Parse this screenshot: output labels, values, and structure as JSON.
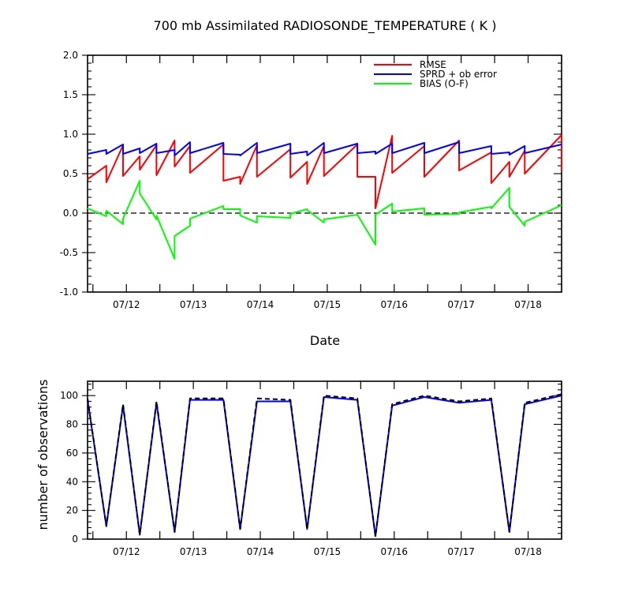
{
  "chart_data": [
    {
      "type": "line",
      "title": "700 mb Assimilated RADIOSONDE_TEMPERATURE ( K )",
      "xlabel": "Date",
      "ylabel": "",
      "x_tick_labels": [
        "07/12",
        "07/13",
        "07/14",
        "07/15",
        "07/16",
        "07/17",
        "07/18"
      ],
      "x_tick_days": [
        12,
        13,
        14,
        15,
        16,
        17,
        18
      ],
      "xlim_days": [
        11.42,
        18.5
      ],
      "ylim": [
        -1.0,
        2.0
      ],
      "y_ticks": [
        -1.0,
        -0.5,
        0.0,
        0.5,
        1.0,
        1.5,
        2.0
      ],
      "y_tick_labels": [
        "-1.0",
        "-0.5",
        "0.0",
        "0.5",
        "1.0",
        "1.5",
        "2.0"
      ],
      "zero_line": "dashed",
      "grid": false,
      "legend_position": "top-right",
      "series": [
        {
          "name": "RMSE",
          "color": "#ff0000",
          "points": [
            [
              11.42,
              0.43
            ],
            [
              11.7,
              0.6
            ],
            [
              11.7,
              0.39
            ],
            [
              11.95,
              0.86
            ],
            [
              11.95,
              0.47
            ],
            [
              12.2,
              0.72
            ],
            [
              12.2,
              0.55
            ],
            [
              12.45,
              0.86
            ],
            [
              12.45,
              0.48
            ],
            [
              12.72,
              0.92
            ],
            [
              12.72,
              0.59
            ],
            [
              12.95,
              0.85
            ],
            [
              12.95,
              0.51
            ],
            [
              13.45,
              0.87
            ],
            [
              13.45,
              0.41
            ],
            [
              13.7,
              0.46
            ],
            [
              13.7,
              0.37
            ],
            [
              13.95,
              0.86
            ],
            [
              13.95,
              0.46
            ],
            [
              14.45,
              0.81
            ],
            [
              14.45,
              0.45
            ],
            [
              14.7,
              0.65
            ],
            [
              14.7,
              0.37
            ],
            [
              14.95,
              0.85
            ],
            [
              14.95,
              0.47
            ],
            [
              15.45,
              0.87
            ],
            [
              15.45,
              0.46
            ],
            [
              15.72,
              0.46
            ],
            [
              15.72,
              0.06
            ],
            [
              15.97,
              0.98
            ],
            [
              15.97,
              0.51
            ],
            [
              16.45,
              0.85
            ],
            [
              16.45,
              0.46
            ],
            [
              16.97,
              0.92
            ],
            [
              16.97,
              0.54
            ],
            [
              17.45,
              0.77
            ],
            [
              17.45,
              0.38
            ],
            [
              17.72,
              0.65
            ],
            [
              17.72,
              0.46
            ],
            [
              17.95,
              0.79
            ],
            [
              17.95,
              0.5
            ],
            [
              18.5,
              0.99
            ],
            [
              18.5,
              0.52
            ]
          ]
        },
        {
          "name": "SPRD + ob error",
          "color": "#0000ff",
          "points": [
            [
              11.42,
              0.75
            ],
            [
              11.7,
              0.8
            ],
            [
              11.7,
              0.75
            ],
            [
              11.95,
              0.87
            ],
            [
              11.95,
              0.75
            ],
            [
              12.2,
              0.82
            ],
            [
              12.2,
              0.76
            ],
            [
              12.45,
              0.88
            ],
            [
              12.45,
              0.76
            ],
            [
              12.72,
              0.8
            ],
            [
              12.72,
              0.73
            ],
            [
              12.95,
              0.9
            ],
            [
              12.95,
              0.76
            ],
            [
              13.45,
              0.89
            ],
            [
              13.45,
              0.75
            ],
            [
              13.7,
              0.74
            ],
            [
              13.7,
              0.73
            ],
            [
              13.95,
              0.89
            ],
            [
              13.95,
              0.76
            ],
            [
              14.45,
              0.88
            ],
            [
              14.45,
              0.75
            ],
            [
              14.7,
              0.78
            ],
            [
              14.7,
              0.73
            ],
            [
              14.95,
              0.89
            ],
            [
              14.95,
              0.76
            ],
            [
              15.45,
              0.88
            ],
            [
              15.45,
              0.76
            ],
            [
              15.72,
              0.78
            ],
            [
              15.72,
              0.75
            ],
            [
              15.97,
              0.88
            ],
            [
              15.97,
              0.76
            ],
            [
              16.45,
              0.89
            ],
            [
              16.45,
              0.76
            ],
            [
              16.97,
              0.9
            ],
            [
              16.97,
              0.76
            ],
            [
              17.45,
              0.85
            ],
            [
              17.45,
              0.75
            ],
            [
              17.72,
              0.77
            ],
            [
              17.72,
              0.74
            ],
            [
              17.95,
              0.85
            ],
            [
              17.95,
              0.76
            ],
            [
              18.5,
              0.87
            ]
          ]
        },
        {
          "name": "BIAS (O-F)",
          "color": "#00ff00",
          "points": [
            [
              11.42,
              0.06
            ],
            [
              11.7,
              -0.04
            ],
            [
              11.7,
              0.03
            ],
            [
              11.95,
              -0.14
            ],
            [
              11.95,
              -0.07
            ],
            [
              12.2,
              0.41
            ],
            [
              12.2,
              0.25
            ],
            [
              12.45,
              -0.08
            ],
            [
              12.45,
              -0.03
            ],
            [
              12.72,
              -0.58
            ],
            [
              12.72,
              -0.29
            ],
            [
              12.95,
              -0.16
            ],
            [
              12.95,
              -0.07
            ],
            [
              13.45,
              0.09
            ],
            [
              13.45,
              0.05
            ],
            [
              13.7,
              0.05
            ],
            [
              13.7,
              -0.03
            ],
            [
              13.95,
              -0.12
            ],
            [
              13.95,
              -0.04
            ],
            [
              14.45,
              -0.06
            ],
            [
              14.45,
              -0.01
            ],
            [
              14.7,
              0.05
            ],
            [
              14.7,
              0.04
            ],
            [
              14.95,
              -0.12
            ],
            [
              14.95,
              -0.08
            ],
            [
              15.45,
              -0.02
            ],
            [
              15.45,
              -0.02
            ],
            [
              15.72,
              -0.4
            ],
            [
              15.72,
              -0.02
            ],
            [
              15.97,
              0.12
            ],
            [
              15.97,
              0.02
            ],
            [
              16.45,
              0.06
            ],
            [
              16.45,
              -0.02
            ],
            [
              16.97,
              -0.01
            ],
            [
              16.97,
              0.01
            ],
            [
              17.45,
              0.08
            ],
            [
              17.45,
              0.06
            ],
            [
              17.72,
              0.32
            ],
            [
              17.72,
              0.08
            ],
            [
              17.95,
              -0.16
            ],
            [
              17.95,
              -0.11
            ],
            [
              18.5,
              0.1
            ]
          ]
        }
      ]
    },
    {
      "type": "line",
      "title": "",
      "xlabel": "",
      "ylabel": "number of observations",
      "x_tick_labels": [
        "07/12",
        "07/13",
        "07/14",
        "07/15",
        "07/16",
        "07/17",
        "07/18"
      ],
      "x_tick_days": [
        12,
        13,
        14,
        15,
        16,
        17,
        18
      ],
      "xlim_days": [
        11.42,
        18.5
      ],
      "ylim": [
        0,
        110
      ],
      "y_ticks": [
        0,
        20,
        40,
        60,
        80,
        100
      ],
      "y_tick_labels": [
        "0",
        "20",
        "40",
        "60",
        "80",
        "100"
      ],
      "grid": false,
      "series": [
        {
          "style": "solid",
          "color": "#0000ff",
          "points": [
            [
              11.42,
              97
            ],
            [
              11.7,
              9
            ],
            [
              11.95,
              93
            ],
            [
              12.2,
              3
            ],
            [
              12.45,
              95
            ],
            [
              12.72,
              5
            ],
            [
              12.95,
              97
            ],
            [
              13.45,
              97
            ],
            [
              13.7,
              7
            ],
            [
              13.95,
              96
            ],
            [
              14.45,
              96
            ],
            [
              14.7,
              7
            ],
            [
              14.95,
              99
            ],
            [
              15.45,
              97
            ],
            [
              15.72,
              2
            ],
            [
              15.97,
              93
            ],
            [
              16.45,
              99
            ],
            [
              16.97,
              95
            ],
            [
              17.45,
              97
            ],
            [
              17.72,
              5
            ],
            [
              17.95,
              94
            ],
            [
              18.5,
              100
            ]
          ]
        },
        {
          "style": "dashed",
          "color": "#000000",
          "points": [
            [
              11.42,
              98
            ],
            [
              11.7,
              9
            ],
            [
              11.95,
              94
            ],
            [
              12.2,
              3
            ],
            [
              12.45,
              96
            ],
            [
              12.72,
              5
            ],
            [
              12.95,
              98
            ],
            [
              13.45,
              98
            ],
            [
              13.7,
              7
            ],
            [
              13.95,
              98
            ],
            [
              14.45,
              97
            ],
            [
              14.7,
              7
            ],
            [
              14.95,
              100
            ],
            [
              15.45,
              98
            ],
            [
              15.72,
              2
            ],
            [
              15.97,
              94
            ],
            [
              16.45,
              100
            ],
            [
              16.97,
              96
            ],
            [
              17.45,
              98
            ],
            [
              17.72,
              5
            ],
            [
              17.95,
              95
            ],
            [
              18.5,
              101
            ]
          ]
        }
      ]
    }
  ]
}
